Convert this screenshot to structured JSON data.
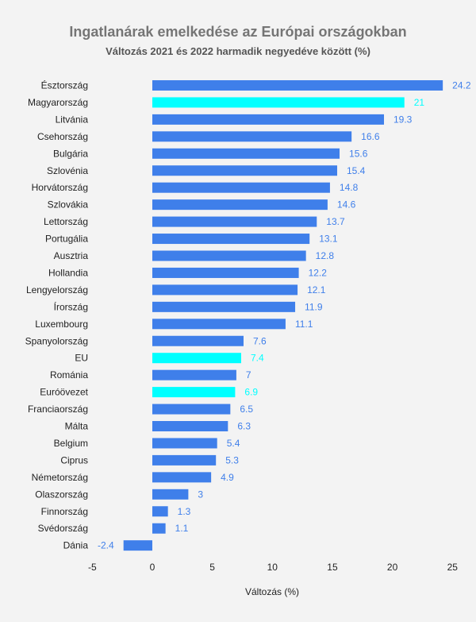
{
  "chart_data": {
    "type": "bar",
    "orientation": "horizontal",
    "title": "Ingatlanárak emelkedése az Európai országokban",
    "subtitle": "Változás 2021 és 2022 harmadik negyedéve között (%)",
    "xlabel": "Változás (%)",
    "ylabel": "",
    "xlim": [
      -5,
      25
    ],
    "xticks": [
      -5,
      0,
      5,
      10,
      15,
      20,
      25
    ],
    "grid": false,
    "legend": "none",
    "categories": [
      "Észtország",
      "Magyarország",
      "Litvánia",
      "Csehország",
      "Bulgária",
      "Szlovénia",
      "Horvátország",
      "Szlovákia",
      "Lettország",
      "Portugália",
      "Ausztria",
      "Hollandia",
      "Lengyelország",
      "Írország",
      "Luxembourg",
      "Spanyolország",
      "EU",
      "Románia",
      "Euróövezet",
      "Franciaország",
      "Málta",
      "Belgium",
      "Ciprus",
      "Németország",
      "Olaszország",
      "Finnország",
      "Svédország",
      "Dánia"
    ],
    "values": [
      24.2,
      21,
      19.3,
      16.6,
      15.6,
      15.4,
      14.8,
      14.6,
      13.7,
      13.1,
      12.8,
      12.2,
      12.1,
      11.9,
      11.1,
      7.6,
      7.4,
      7,
      6.9,
      6.5,
      6.3,
      5.4,
      5.3,
      4.9,
      3,
      1.3,
      1.1,
      -2.4
    ],
    "value_labels": [
      "24.2",
      "21",
      "19.3",
      "16.6",
      "15.6",
      "15.4",
      "14.8",
      "14.6",
      "13.7",
      "13.1",
      "12.8",
      "12.2",
      "12.1",
      "11.9",
      "11.1",
      "7.6",
      "7.4",
      "7",
      "6.9",
      "6.5",
      "6.3",
      "5.4",
      "5.3",
      "4.9",
      "3",
      "1.3",
      "1.1",
      "-2.4"
    ],
    "highlighted": [
      "Magyarország",
      "EU",
      "Euróövezet"
    ],
    "colors": {
      "default": "#3f7fea",
      "highlight": "#00ffff"
    }
  }
}
